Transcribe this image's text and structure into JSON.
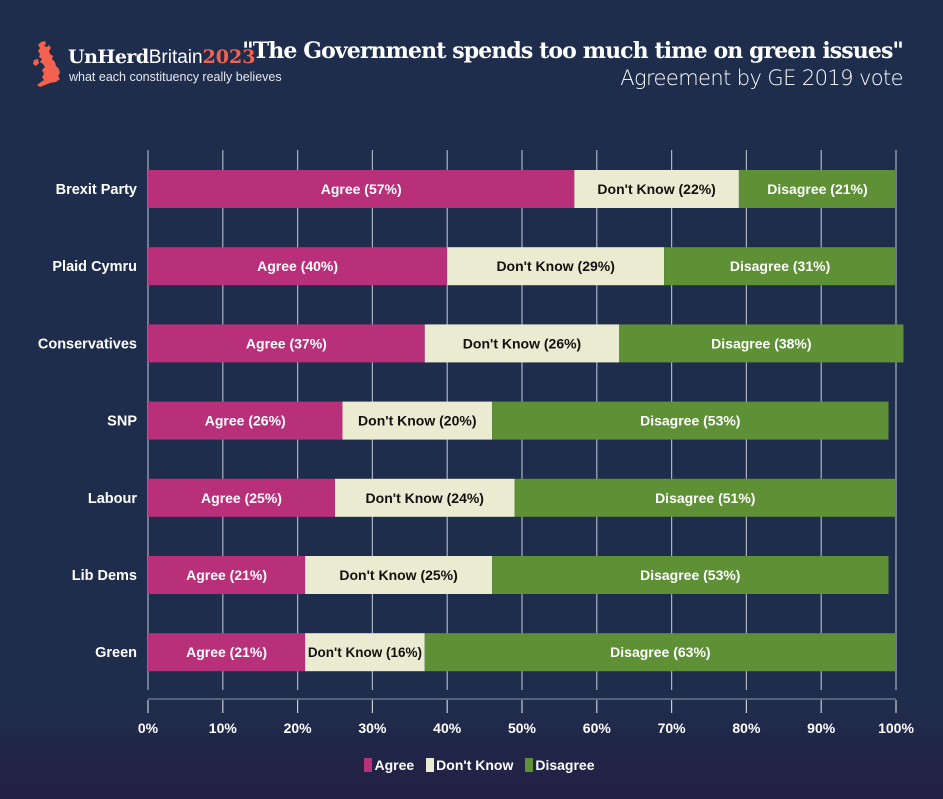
{
  "branding": {
    "name_part1": "UnHerd",
    "name_part2": "Britain",
    "name_part3": "2023",
    "tagline": "what each constituency really believes",
    "logo_icon": "uk-map-icon",
    "accent_color": "#f4624f"
  },
  "chart_data": {
    "type": "bar",
    "orientation": "horizontal",
    "stacked": true,
    "title": "\"The Government spends too much time on green issues\"",
    "subtitle": "Agreement by GE 2019 vote",
    "xlabel": "",
    "ylabel": "",
    "xlim": [
      0,
      100
    ],
    "grid": true,
    "legend_position": "bottom",
    "categories": [
      "Brexit Party",
      "Plaid Cymru",
      "Conservatives",
      "SNP",
      "Labour",
      "Lib Dems",
      "Green"
    ],
    "series": [
      {
        "name": "Agree",
        "color": "#b8307a",
        "label_color": "#ffffff",
        "values": [
          57,
          40,
          37,
          26,
          25,
          21,
          21
        ],
        "labels": [
          "Agree (57%)",
          "Agree (40%)",
          "Agree (37%)",
          "Agree (26%)",
          "Agree (25%)",
          "Agree (21%)",
          "Agree (21%)"
        ]
      },
      {
        "name": "Don't Know",
        "color": "#ebebd2",
        "label_color": "#111111",
        "values": [
          22,
          29,
          26,
          20,
          24,
          25,
          16
        ],
        "labels": [
          "Don't Know (22%)",
          "Don't Know (29%)",
          "Don't Know (26%)",
          "Don't Know (20%)",
          "Don't Know (24%)",
          "Don't Know (25%)",
          "Don't Know (16%)"
        ]
      },
      {
        "name": "Disagree",
        "color": "#5e9035",
        "label_color": "#ffffff",
        "values": [
          21,
          31,
          38,
          53,
          51,
          53,
          63
        ],
        "labels": [
          "Disagree (21%)",
          "Disagree (31%)",
          "Disagree (38%)",
          "Disagree (53%)",
          "Disagree (51%)",
          "Disagree (53%)",
          "Disagree (63%)"
        ]
      }
    ],
    "x_ticks": [
      0,
      10,
      20,
      30,
      40,
      50,
      60,
      70,
      80,
      90,
      100
    ],
    "x_tick_labels": [
      "0%",
      "10%",
      "20%",
      "30%",
      "40%",
      "50%",
      "60%",
      "70%",
      "80%",
      "90%",
      "100%"
    ]
  }
}
